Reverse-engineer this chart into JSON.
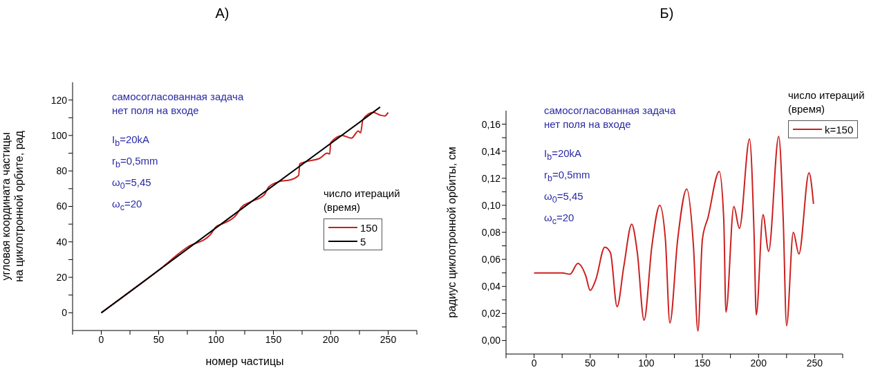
{
  "chart_data": [
    {
      "type": "line",
      "title": "А)",
      "xlabel": "номер частицы",
      "ylabel": "угловая координата частицы\nна циклотронной орбите, рад",
      "legend_title": "число итераций\n(время)",
      "legend": "right",
      "marker": "none",
      "line_style": "solid",
      "annotations": [
        "самосогласованная задача",
        "нет поля на входе",
        "I$_{b}$=20kA",
        "r$_{b}$=0,5mm",
        "ω$_{0}$=5,45",
        "ω$_{c}$=20"
      ],
      "xlim": [
        -25,
        275
      ],
      "xticks": [
        {
          "value": -25,
          "label": null
        },
        0,
        {
          "value": 25,
          "label": null
        },
        50,
        {
          "value": 75,
          "label": null
        },
        100,
        {
          "value": 125,
          "label": null
        },
        150,
        {
          "value": 175,
          "label": null
        },
        200,
        {
          "value": 225,
          "label": null
        },
        250,
        {
          "value": 275,
          "label": null
        }
      ],
      "ylim": [
        -10,
        130
      ],
      "yticks": [
        0,
        {
          "value": 10,
          "label": null
        },
        20,
        {
          "value": 30,
          "label": null
        },
        40,
        {
          "value": 50,
          "label": null
        },
        60,
        {
          "value": 70,
          "label": null
        },
        80,
        {
          "value": 90,
          "label": null
        },
        100,
        {
          "value": 110,
          "label": null
        },
        120
      ],
      "series": [
        {
          "name": "150",
          "color": "#cc1f1f",
          "x": [
            0,
            50,
            75,
            95,
            100,
            105,
            118,
            122,
            130,
            142,
            146,
            155,
            165,
            172,
            173,
            180,
            190,
            197,
            199,
            200,
            210,
            218,
            224,
            226,
            228,
            237,
            243,
            247,
            250
          ],
          "values": [
            0,
            24,
            37,
            44,
            48.5,
            50,
            55.5,
            59.5,
            62.5,
            66.5,
            71,
            74,
            75,
            77.5,
            84,
            85.5,
            87,
            90,
            89.5,
            96,
            100,
            98.5,
            102.5,
            101.5,
            109,
            113,
            111.5,
            111,
            113
          ]
        },
        {
          "name": "5",
          "color": "#000000",
          "x": [
            0,
            120,
            243
          ],
          "values": [
            0,
            57.5,
            116
          ]
        }
      ]
    },
    {
      "type": "line",
      "title": "Б)",
      "ylabel": "радиус циклотронной орбиты, см",
      "legend_title": "число итераций\n(время)",
      "legend": "top right",
      "marker": "none",
      "line_style": "solid",
      "annotations": [
        "самосогласованная задача",
        "нет поля на входе",
        "I$_{b}$=20kA",
        "r$_{b}$=0,5mm",
        "ω$_{0}$=5,45",
        "ω$_{c}$=20"
      ],
      "xlim": [
        -25,
        275
      ],
      "xticks": [
        {
          "value": -25,
          "label": null
        },
        0,
        {
          "value": 25,
          "label": null
        },
        50,
        {
          "value": 75,
          "label": null
        },
        100,
        {
          "value": 125,
          "label": null
        },
        150,
        {
          "value": 175,
          "label": null
        },
        200,
        {
          "value": 225,
          "label": null
        },
        250,
        {
          "value": 275,
          "label": null
        }
      ],
      "ylim": [
        -0.01,
        0.17
      ],
      "yticks": [
        {
          "value": 0,
          "label": "0,00"
        },
        {
          "value": 0.01,
          "label": null
        },
        {
          "value": 0.02,
          "label": "0,02"
        },
        {
          "value": 0.03,
          "label": null
        },
        {
          "value": 0.04,
          "label": "0,04"
        },
        {
          "value": 0.05,
          "label": null
        },
        {
          "value": 0.06,
          "label": "0,06"
        },
        {
          "value": 0.07,
          "label": null
        },
        {
          "value": 0.08,
          "label": "0,08"
        },
        {
          "value": 0.09,
          "label": null
        },
        {
          "value": 0.1,
          "label": "0,10"
        },
        {
          "value": 0.11,
          "label": null
        },
        {
          "value": 0.12,
          "label": "0,12"
        },
        {
          "value": 0.13,
          "label": null
        },
        {
          "value": 0.14,
          "label": "0,14"
        },
        {
          "value": 0.15,
          "label": null
        },
        {
          "value": 0.16,
          "label": "0,16"
        }
      ],
      "series": [
        {
          "name": "k=150",
          "color": "#cc1f1f",
          "x": [
            0,
            25,
            32,
            39,
            46,
            50,
            55,
            63,
            68,
            74,
            80,
            87,
            92,
            98,
            105,
            112,
            117,
            121,
            128,
            136,
            142,
            146,
            150,
            155,
            165,
            169,
            171,
            178,
            183,
            192,
            196,
            198,
            204,
            209,
            218,
            222,
            225,
            231,
            236,
            245,
            249
          ],
          "values": [
            0.05,
            0.05,
            0.049,
            0.057,
            0.048,
            0.037,
            0.045,
            0.069,
            0.065,
            0.025,
            0.055,
            0.086,
            0.065,
            0.015,
            0.07,
            0.1,
            0.075,
            0.013,
            0.075,
            0.112,
            0.07,
            0.007,
            0.075,
            0.091,
            0.125,
            0.09,
            0.021,
            0.099,
            0.083,
            0.149,
            0.08,
            0.019,
            0.093,
            0.066,
            0.151,
            0.09,
            0.011,
            0.08,
            0.064,
            0.124,
            0.101
          ]
        }
      ]
    }
  ]
}
